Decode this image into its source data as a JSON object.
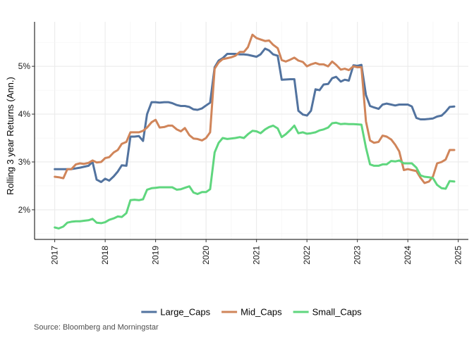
{
  "caption": "Source: Bloomberg and Morningstar",
  "chart_data": {
    "type": "line",
    "title": "",
    "xlabel": "",
    "ylabel": "Rolling 3 year Returns (Ann.)",
    "xlim": [
      2016.6,
      2025.2
    ],
    "ylim": [
      1.38,
      5.93
    ],
    "x_ticks": [
      2017,
      2018,
      2019,
      2020,
      2021,
      2022,
      2023,
      2024,
      2025
    ],
    "y_ticks": [
      2,
      3,
      4,
      5
    ],
    "y_tick_labels": [
      "2%",
      "3%",
      "4%",
      "5%"
    ],
    "grid": true,
    "legend_position": "bottom",
    "series": [
      {
        "name": "Large_Caps",
        "color": "#52739f",
        "points": [
          [
            2017.0,
            2.85
          ],
          [
            2017.17,
            2.85
          ],
          [
            2017.33,
            2.85
          ],
          [
            2017.5,
            2.88
          ],
          [
            2017.67,
            2.92
          ],
          [
            2017.75,
            3.0
          ],
          [
            2017.83,
            2.63
          ],
          [
            2017.92,
            2.58
          ],
          [
            2018.0,
            2.65
          ],
          [
            2018.08,
            2.61
          ],
          [
            2018.17,
            2.7
          ],
          [
            2018.25,
            2.8
          ],
          [
            2018.33,
            2.93
          ],
          [
            2018.42,
            2.92
          ],
          [
            2018.5,
            3.53
          ],
          [
            2018.58,
            3.53
          ],
          [
            2018.67,
            3.54
          ],
          [
            2018.75,
            3.44
          ],
          [
            2018.83,
            4.0
          ],
          [
            2018.92,
            4.25
          ],
          [
            2019.0,
            4.25
          ],
          [
            2019.08,
            4.24
          ],
          [
            2019.17,
            4.25
          ],
          [
            2019.25,
            4.25
          ],
          [
            2019.33,
            4.23
          ],
          [
            2019.42,
            4.19
          ],
          [
            2019.5,
            4.17
          ],
          [
            2019.58,
            4.17
          ],
          [
            2019.67,
            4.15
          ],
          [
            2019.75,
            4.1
          ],
          [
            2019.83,
            4.09
          ],
          [
            2019.92,
            4.12
          ],
          [
            2020.0,
            4.18
          ],
          [
            2020.08,
            4.24
          ],
          [
            2020.17,
            4.98
          ],
          [
            2020.25,
            5.12
          ],
          [
            2020.33,
            5.17
          ],
          [
            2020.42,
            5.26
          ],
          [
            2020.58,
            5.26
          ],
          [
            2020.67,
            5.25
          ],
          [
            2020.75,
            5.25
          ],
          [
            2020.83,
            5.24
          ],
          [
            2021.0,
            5.2
          ],
          [
            2021.08,
            5.25
          ],
          [
            2021.17,
            5.37
          ],
          [
            2021.25,
            5.33
          ],
          [
            2021.33,
            5.25
          ],
          [
            2021.42,
            5.22
          ],
          [
            2021.5,
            4.72
          ],
          [
            2021.67,
            4.73
          ],
          [
            2021.75,
            4.73
          ],
          [
            2021.83,
            4.07
          ],
          [
            2021.92,
            3.99
          ],
          [
            2022.0,
            3.97
          ],
          [
            2022.08,
            4.07
          ],
          [
            2022.17,
            4.52
          ],
          [
            2022.25,
            4.5
          ],
          [
            2022.33,
            4.62
          ],
          [
            2022.42,
            4.63
          ],
          [
            2022.5,
            4.75
          ],
          [
            2022.58,
            4.78
          ],
          [
            2022.67,
            4.68
          ],
          [
            2022.75,
            4.72
          ],
          [
            2022.83,
            4.7
          ],
          [
            2022.92,
            5.02
          ],
          [
            2023.0,
            5.01
          ],
          [
            2023.08,
            5.03
          ],
          [
            2023.17,
            4.4
          ],
          [
            2023.25,
            4.17
          ],
          [
            2023.33,
            4.14
          ],
          [
            2023.42,
            4.11
          ],
          [
            2023.5,
            4.2
          ],
          [
            2023.58,
            4.22
          ],
          [
            2023.67,
            4.2
          ],
          [
            2023.75,
            4.18
          ],
          [
            2023.83,
            4.2
          ],
          [
            2023.92,
            4.2
          ],
          [
            2024.0,
            4.2
          ],
          [
            2024.08,
            4.16
          ],
          [
            2024.17,
            3.92
          ],
          [
            2024.25,
            3.89
          ],
          [
            2024.33,
            3.89
          ],
          [
            2024.42,
            3.9
          ],
          [
            2024.5,
            3.91
          ],
          [
            2024.58,
            3.95
          ],
          [
            2024.67,
            3.97
          ],
          [
            2024.75,
            4.05
          ],
          [
            2024.83,
            4.15
          ],
          [
            2024.92,
            4.16
          ]
        ]
      },
      {
        "name": "Mid_Caps",
        "color": "#d0855a",
        "points": [
          [
            2017.0,
            2.69
          ],
          [
            2017.08,
            2.68
          ],
          [
            2017.17,
            2.66
          ],
          [
            2017.25,
            2.85
          ],
          [
            2017.33,
            2.85
          ],
          [
            2017.42,
            2.95
          ],
          [
            2017.5,
            2.97
          ],
          [
            2017.58,
            2.96
          ],
          [
            2017.67,
            2.98
          ],
          [
            2017.75,
            3.03
          ],
          [
            2017.83,
            2.99
          ],
          [
            2017.92,
            3.0
          ],
          [
            2018.0,
            3.08
          ],
          [
            2018.08,
            3.1
          ],
          [
            2018.17,
            3.2
          ],
          [
            2018.25,
            3.25
          ],
          [
            2018.33,
            3.38
          ],
          [
            2018.42,
            3.42
          ],
          [
            2018.5,
            3.62
          ],
          [
            2018.58,
            3.62
          ],
          [
            2018.67,
            3.62
          ],
          [
            2018.75,
            3.65
          ],
          [
            2018.83,
            3.72
          ],
          [
            2018.92,
            3.83
          ],
          [
            2019.0,
            3.88
          ],
          [
            2019.08,
            3.72
          ],
          [
            2019.17,
            3.73
          ],
          [
            2019.25,
            3.76
          ],
          [
            2019.33,
            3.76
          ],
          [
            2019.42,
            3.68
          ],
          [
            2019.5,
            3.64
          ],
          [
            2019.58,
            3.71
          ],
          [
            2019.67,
            3.56
          ],
          [
            2019.75,
            3.49
          ],
          [
            2019.83,
            3.48
          ],
          [
            2019.92,
            3.45
          ],
          [
            2020.0,
            3.5
          ],
          [
            2020.08,
            3.62
          ],
          [
            2020.17,
            4.95
          ],
          [
            2020.25,
            5.08
          ],
          [
            2020.33,
            5.15
          ],
          [
            2020.42,
            5.17
          ],
          [
            2020.5,
            5.19
          ],
          [
            2020.58,
            5.22
          ],
          [
            2020.67,
            5.3
          ],
          [
            2020.75,
            5.3
          ],
          [
            2020.83,
            5.4
          ],
          [
            2020.92,
            5.66
          ],
          [
            2021.0,
            5.59
          ],
          [
            2021.08,
            5.56
          ],
          [
            2021.17,
            5.53
          ],
          [
            2021.25,
            5.54
          ],
          [
            2021.33,
            5.45
          ],
          [
            2021.42,
            5.38
          ],
          [
            2021.5,
            5.13
          ],
          [
            2021.58,
            5.1
          ],
          [
            2021.67,
            5.14
          ],
          [
            2021.75,
            5.18
          ],
          [
            2021.83,
            5.12
          ],
          [
            2021.92,
            5.09
          ],
          [
            2022.0,
            5.0
          ],
          [
            2022.08,
            5.04
          ],
          [
            2022.17,
            5.07
          ],
          [
            2022.25,
            5.04
          ],
          [
            2022.33,
            5.04
          ],
          [
            2022.42,
            5.0
          ],
          [
            2022.5,
            5.1
          ],
          [
            2022.58,
            5.03
          ],
          [
            2022.67,
            4.93
          ],
          [
            2022.75,
            4.95
          ],
          [
            2022.83,
            4.92
          ],
          [
            2022.92,
            5.0
          ],
          [
            2023.0,
            4.98
          ],
          [
            2023.08,
            4.98
          ],
          [
            2023.17,
            3.85
          ],
          [
            2023.25,
            3.45
          ],
          [
            2023.33,
            3.4
          ],
          [
            2023.42,
            3.42
          ],
          [
            2023.5,
            3.55
          ],
          [
            2023.58,
            3.53
          ],
          [
            2023.67,
            3.47
          ],
          [
            2023.75,
            3.36
          ],
          [
            2023.83,
            3.22
          ],
          [
            2023.92,
            2.83
          ],
          [
            2024.0,
            2.85
          ],
          [
            2024.08,
            2.83
          ],
          [
            2024.17,
            2.81
          ],
          [
            2024.25,
            2.67
          ],
          [
            2024.33,
            2.56
          ],
          [
            2024.42,
            2.59
          ],
          [
            2024.5,
            2.7
          ],
          [
            2024.58,
            2.97
          ],
          [
            2024.67,
            3.0
          ],
          [
            2024.75,
            3.05
          ],
          [
            2024.83,
            3.25
          ],
          [
            2024.92,
            3.25
          ]
        ]
      },
      {
        "name": "Small_Caps",
        "color": "#5fd67e",
        "points": [
          [
            2017.0,
            1.63
          ],
          [
            2017.08,
            1.61
          ],
          [
            2017.17,
            1.65
          ],
          [
            2017.25,
            1.73
          ],
          [
            2017.33,
            1.75
          ],
          [
            2017.42,
            1.76
          ],
          [
            2017.5,
            1.76
          ],
          [
            2017.58,
            1.77
          ],
          [
            2017.67,
            1.78
          ],
          [
            2017.75,
            1.81
          ],
          [
            2017.83,
            1.73
          ],
          [
            2017.92,
            1.72
          ],
          [
            2018.0,
            1.74
          ],
          [
            2018.08,
            1.79
          ],
          [
            2018.17,
            1.82
          ],
          [
            2018.25,
            1.86
          ],
          [
            2018.33,
            1.85
          ],
          [
            2018.42,
            1.93
          ],
          [
            2018.5,
            2.2
          ],
          [
            2018.58,
            2.21
          ],
          [
            2018.67,
            2.2
          ],
          [
            2018.75,
            2.22
          ],
          [
            2018.83,
            2.42
          ],
          [
            2018.92,
            2.45
          ],
          [
            2019.0,
            2.46
          ],
          [
            2019.08,
            2.47
          ],
          [
            2019.25,
            2.47
          ],
          [
            2019.33,
            2.47
          ],
          [
            2019.42,
            2.42
          ],
          [
            2019.5,
            2.43
          ],
          [
            2019.58,
            2.46
          ],
          [
            2019.67,
            2.49
          ],
          [
            2019.75,
            2.36
          ],
          [
            2019.83,
            2.33
          ],
          [
            2019.92,
            2.37
          ],
          [
            2020.0,
            2.37
          ],
          [
            2020.08,
            2.43
          ],
          [
            2020.17,
            3.2
          ],
          [
            2020.25,
            3.4
          ],
          [
            2020.33,
            3.5
          ],
          [
            2020.42,
            3.48
          ],
          [
            2020.58,
            3.5
          ],
          [
            2020.67,
            3.52
          ],
          [
            2020.75,
            3.5
          ],
          [
            2020.83,
            3.58
          ],
          [
            2020.92,
            3.65
          ],
          [
            2021.0,
            3.64
          ],
          [
            2021.08,
            3.6
          ],
          [
            2021.17,
            3.68
          ],
          [
            2021.25,
            3.73
          ],
          [
            2021.33,
            3.76
          ],
          [
            2021.42,
            3.7
          ],
          [
            2021.5,
            3.52
          ],
          [
            2021.58,
            3.58
          ],
          [
            2021.67,
            3.67
          ],
          [
            2021.75,
            3.76
          ],
          [
            2021.83,
            3.6
          ],
          [
            2021.92,
            3.62
          ],
          [
            2022.0,
            3.59
          ],
          [
            2022.08,
            3.6
          ],
          [
            2022.17,
            3.62
          ],
          [
            2022.25,
            3.66
          ],
          [
            2022.33,
            3.68
          ],
          [
            2022.42,
            3.72
          ],
          [
            2022.5,
            3.81
          ],
          [
            2022.58,
            3.82
          ],
          [
            2022.67,
            3.79
          ],
          [
            2022.75,
            3.8
          ],
          [
            2022.83,
            3.79
          ],
          [
            2022.92,
            3.79
          ],
          [
            2023.08,
            3.78
          ],
          [
            2023.17,
            3.3
          ],
          [
            2023.25,
            2.95
          ],
          [
            2023.33,
            2.92
          ],
          [
            2023.42,
            2.92
          ],
          [
            2023.5,
            2.95
          ],
          [
            2023.58,
            2.95
          ],
          [
            2023.67,
            3.02
          ],
          [
            2023.75,
            3.01
          ],
          [
            2023.83,
            3.03
          ],
          [
            2023.92,
            2.97
          ],
          [
            2024.0,
            2.97
          ],
          [
            2024.08,
            2.97
          ],
          [
            2024.17,
            2.88
          ],
          [
            2024.25,
            2.72
          ],
          [
            2024.33,
            2.69
          ],
          [
            2024.42,
            2.68
          ],
          [
            2024.5,
            2.66
          ],
          [
            2024.58,
            2.52
          ],
          [
            2024.67,
            2.45
          ],
          [
            2024.75,
            2.44
          ],
          [
            2024.83,
            2.6
          ],
          [
            2024.92,
            2.59
          ]
        ]
      }
    ]
  }
}
